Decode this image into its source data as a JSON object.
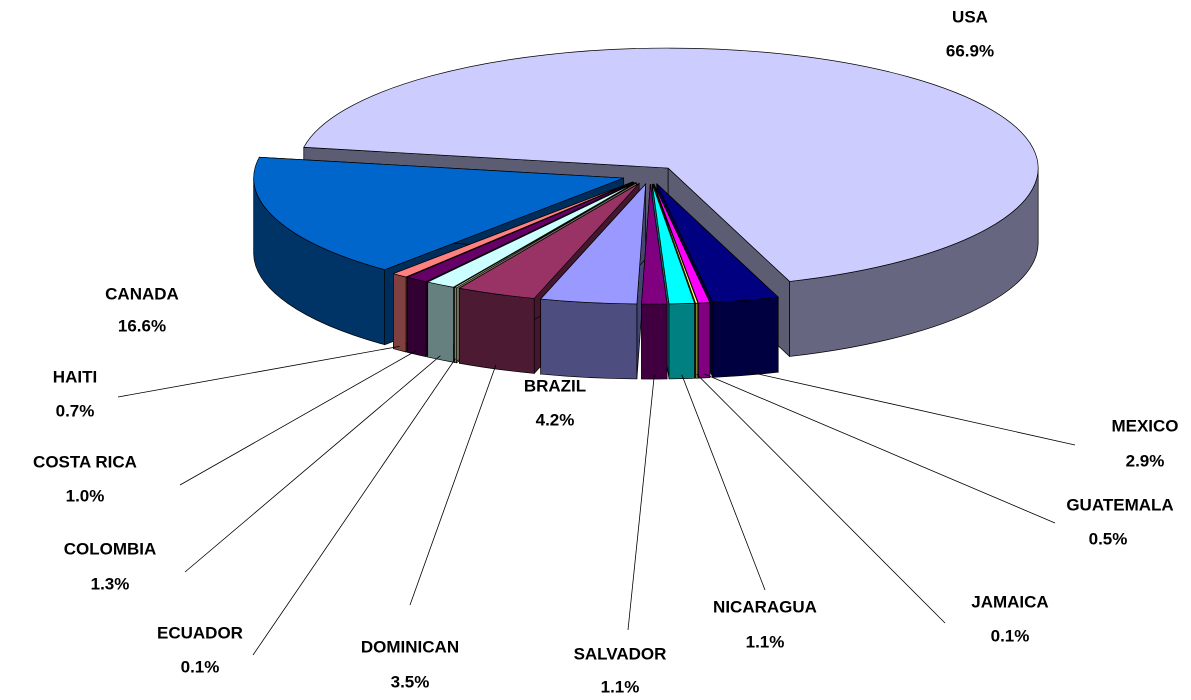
{
  "chart_data": {
    "type": "pie3d",
    "categories": [
      "USA",
      "MEXICO",
      "GUATEMALA",
      "JAMAICA",
      "NICARAGUA",
      "SALVADOR",
      "BRAZIL",
      "DOMINICAN",
      "ECUADOR",
      "COLOMBIA",
      "COSTA RICA",
      "HAITI",
      "CANADA"
    ],
    "values": [
      66.9,
      2.9,
      0.5,
      0.1,
      1.1,
      1.1,
      4.2,
      3.5,
      0.1,
      1.3,
      1.0,
      0.7,
      16.6
    ],
    "value_labels": [
      "66.9%",
      "2.9%",
      "0.5%",
      "0.1%",
      "1.1%",
      "1.1%",
      "4.2%",
      "3.5%",
      "0.1%",
      "1.3%",
      "1.0%",
      "0.7%",
      "16.6%"
    ],
    "colors": [
      "#ccccff",
      "#000080",
      "#ff00ff",
      "#ffff66",
      "#00ffff",
      "#800080",
      "#9999ff",
      "#993366",
      "#ffffcc",
      "#ccffff",
      "#660066",
      "#ff8080",
      "#0066cc"
    ]
  }
}
